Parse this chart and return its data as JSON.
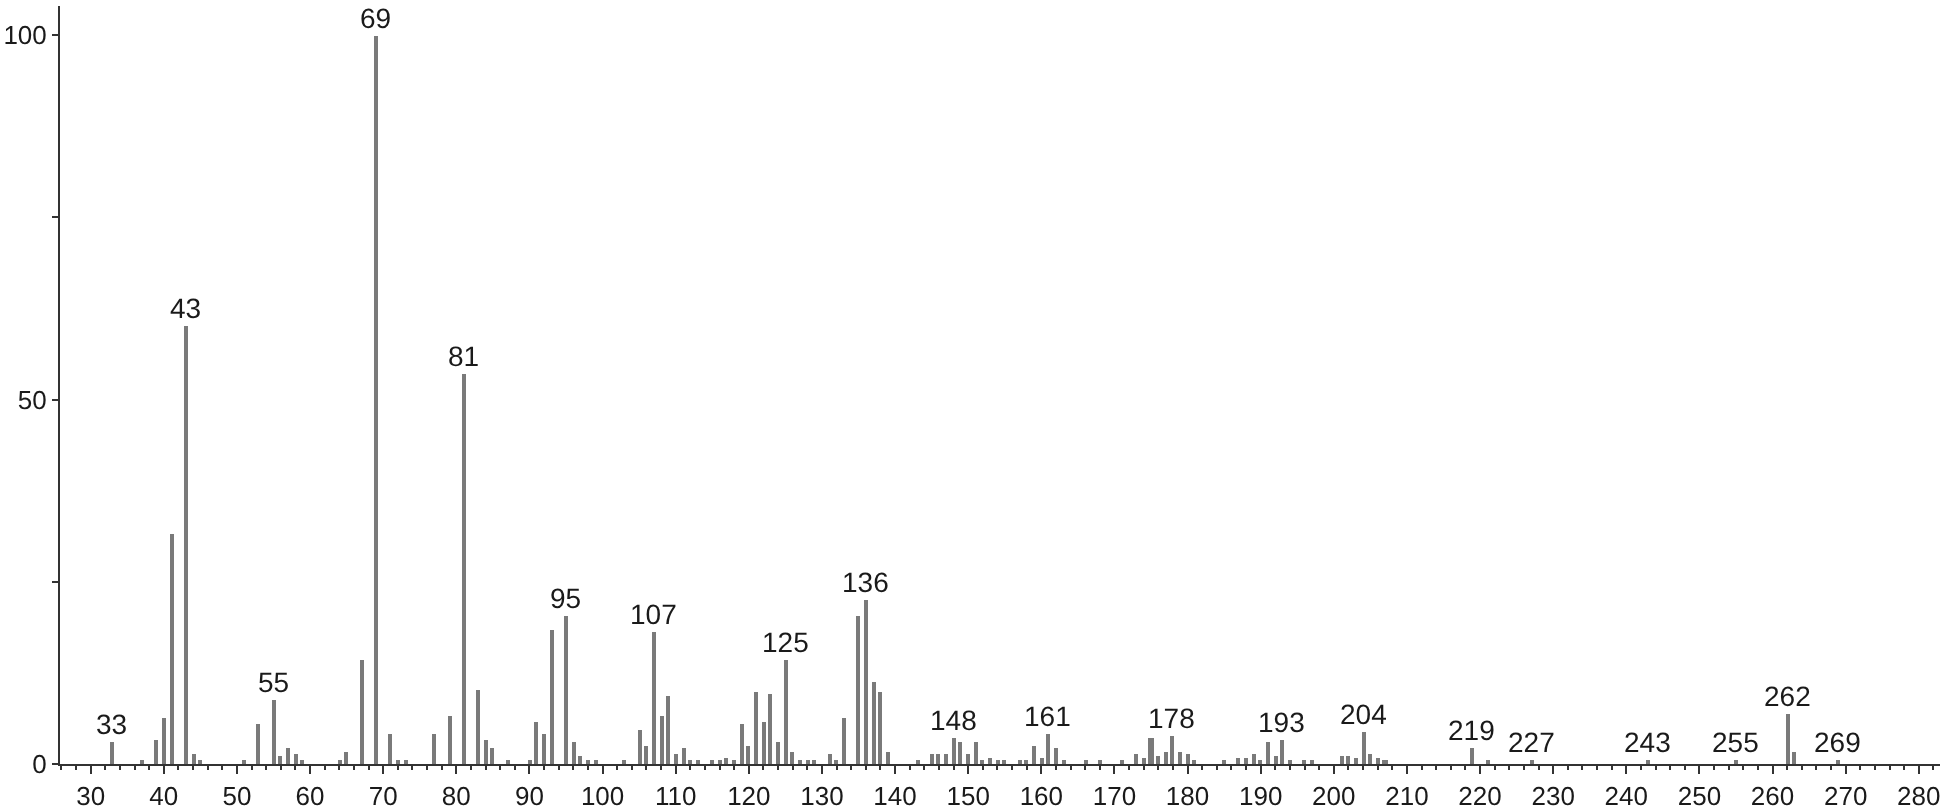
{
  "chart_data": {
    "type": "bar",
    "color": "#7a7a7a",
    "x": [
      33,
      37,
      39,
      40,
      41,
      43,
      44,
      45,
      51,
      53,
      55,
      56,
      57,
      58,
      59,
      64,
      65,
      67,
      69,
      71,
      72,
      73,
      77,
      79,
      81,
      83,
      84,
      85,
      87,
      90,
      91,
      92,
      93,
      95,
      96,
      97,
      98,
      99,
      103,
      105,
      106,
      107,
      108,
      109,
      110,
      111,
      112,
      113,
      115,
      116,
      117,
      118,
      119,
      120,
      121,
      122,
      123,
      124,
      125,
      126,
      127,
      128,
      129,
      131,
      132,
      133,
      135,
      136,
      137,
      138,
      139,
      143,
      145,
      146,
      147,
      148,
      149,
      150,
      151,
      152,
      153,
      154,
      155,
      157,
      158,
      159,
      160,
      161,
      162,
      163,
      166,
      168,
      171,
      173,
      174,
      175,
      176,
      177,
      178,
      179,
      180,
      181,
      185,
      187,
      188,
      189,
      190,
      191,
      192,
      193,
      194,
      196,
      197,
      201,
      202,
      203,
      204,
      205,
      206,
      207,
      219,
      221,
      227,
      243,
      255,
      262,
      263,
      269
    ],
    "values": [
      3.0,
      0.5,
      3.2,
      6.2,
      31.6,
      60,
      1.5,
      0.5,
      0.5,
      5.4,
      8.7,
      1.1,
      2.2,
      1.5,
      0.5,
      0.5,
      1.7,
      14.4,
      100,
      4.0,
      0.5,
      0.5,
      4.1,
      6.6,
      53.4,
      10.1,
      3.2,
      2.2,
      0.5,
      0.5,
      5.7,
      4.2,
      18.5,
      20.4,
      2.9,
      1.1,
      0.5,
      0.6,
      0.5,
      4.7,
      2.6,
      18.1,
      6.6,
      9.3,
      1.5,
      2.2,
      0.5,
      0.4,
      0.5,
      0.5,
      0.9,
      0.5,
      5.4,
      2.6,
      9.9,
      5.8,
      9.6,
      3.1,
      14.2,
      1.6,
      0.5,
      0.5,
      0.5,
      1.3,
      0.5,
      6.2,
      20.3,
      22.6,
      11.2,
      9.9,
      1.6,
      0.5,
      1.3,
      1.3,
      1.5,
      3.6,
      2.9,
      1.5,
      2.9,
      0.5,
      0.9,
      0.5,
      0.4,
      0.5,
      0.6,
      2.5,
      0.9,
      4.0,
      2.2,
      0.6,
      0.5,
      0.5,
      0.6,
      1.5,
      0.8,
      3.6,
      1.2,
      1.6,
      3.9,
      1.6,
      1.5,
      0.5,
      0.5,
      0.7,
      0.9,
      1.5,
      0.5,
      2.9,
      1.2,
      3.2,
      0.5,
      0.5,
      0.5,
      1.1,
      1.1,
      0.8,
      4.5,
      1.5,
      0.8,
      0.5,
      2.1,
      0.5,
      0.6,
      0.6,
      0.6,
      6.8,
      1.6,
      0.6
    ],
    "xlim": [
      25.8,
      282.9
    ],
    "xticks": [
      {
        "value": 26,
        "label": null
      },
      {
        "value": 28,
        "label": null
      },
      30,
      {
        "value": 32,
        "label": null
      },
      {
        "value": 34,
        "label": null
      },
      {
        "value": 36,
        "label": null
      },
      {
        "value": 38,
        "label": null
      },
      40,
      {
        "value": 42,
        "label": null
      },
      {
        "value": 44,
        "label": null
      },
      {
        "value": 46,
        "label": null
      },
      {
        "value": 48,
        "label": null
      },
      50,
      {
        "value": 52,
        "label": null
      },
      {
        "value": 54,
        "label": null
      },
      {
        "value": 56,
        "label": null
      },
      {
        "value": 58,
        "label": null
      },
      60,
      {
        "value": 62,
        "label": null
      },
      {
        "value": 64,
        "label": null
      },
      {
        "value": 66,
        "label": null
      },
      {
        "value": 68,
        "label": null
      },
      70,
      {
        "value": 72,
        "label": null
      },
      {
        "value": 74,
        "label": null
      },
      {
        "value": 76,
        "label": null
      },
      {
        "value": 78,
        "label": null
      },
      80,
      {
        "value": 82,
        "label": null
      },
      {
        "value": 84,
        "label": null
      },
      {
        "value": 86,
        "label": null
      },
      {
        "value": 88,
        "label": null
      },
      90,
      {
        "value": 92,
        "label": null
      },
      {
        "value": 94,
        "label": null
      },
      {
        "value": 96,
        "label": null
      },
      {
        "value": 98,
        "label": null
      },
      100,
      {
        "value": 102,
        "label": null
      },
      {
        "value": 104,
        "label": null
      },
      {
        "value": 106,
        "label": null
      },
      {
        "value": 108,
        "label": null
      },
      110,
      {
        "value": 112,
        "label": null
      },
      {
        "value": 114,
        "label": null
      },
      {
        "value": 116,
        "label": null
      },
      {
        "value": 118,
        "label": null
      },
      120,
      {
        "value": 122,
        "label": null
      },
      {
        "value": 124,
        "label": null
      },
      {
        "value": 126,
        "label": null
      },
      {
        "value": 128,
        "label": null
      },
      130,
      {
        "value": 132,
        "label": null
      },
      {
        "value": 134,
        "label": null
      },
      {
        "value": 136,
        "label": null
      },
      {
        "value": 138,
        "label": null
      },
      140,
      {
        "value": 142,
        "label": null
      },
      {
        "value": 144,
        "label": null
      },
      {
        "value": 146,
        "label": null
      },
      {
        "value": 148,
        "label": null
      },
      150,
      {
        "value": 152,
        "label": null
      },
      {
        "value": 154,
        "label": null
      },
      {
        "value": 156,
        "label": null
      },
      {
        "value": 158,
        "label": null
      },
      160,
      {
        "value": 162,
        "label": null
      },
      {
        "value": 164,
        "label": null
      },
      {
        "value": 166,
        "label": null
      },
      {
        "value": 168,
        "label": null
      },
      170,
      {
        "value": 172,
        "label": null
      },
      {
        "value": 174,
        "label": null
      },
      {
        "value": 176,
        "label": null
      },
      {
        "value": 178,
        "label": null
      },
      180,
      {
        "value": 182,
        "label": null
      },
      {
        "value": 184,
        "label": null
      },
      {
        "value": 186,
        "label": null
      },
      {
        "value": 188,
        "label": null
      },
      190,
      {
        "value": 192,
        "label": null
      },
      {
        "value": 194,
        "label": null
      },
      {
        "value": 196,
        "label": null
      },
      {
        "value": 198,
        "label": null
      },
      200,
      {
        "value": 202,
        "label": null
      },
      {
        "value": 204,
        "label": null
      },
      {
        "value": 206,
        "label": null
      },
      {
        "value": 208,
        "label": null
      },
      210,
      {
        "value": 212,
        "label": null
      },
      {
        "value": 214,
        "label": null
      },
      {
        "value": 216,
        "label": null
      },
      {
        "value": 218,
        "label": null
      },
      220,
      {
        "value": 222,
        "label": null
      },
      {
        "value": 224,
        "label": null
      },
      {
        "value": 226,
        "label": null
      },
      {
        "value": 228,
        "label": null
      },
      230,
      {
        "value": 232,
        "label": null
      },
      {
        "value": 234,
        "label": null
      },
      {
        "value": 236,
        "label": null
      },
      {
        "value": 238,
        "label": null
      },
      240,
      {
        "value": 242,
        "label": null
      },
      {
        "value": 244,
        "label": null
      },
      {
        "value": 246,
        "label": null
      },
      {
        "value": 248,
        "label": null
      },
      250,
      {
        "value": 252,
        "label": null
      },
      {
        "value": 254,
        "label": null
      },
      {
        "value": 256,
        "label": null
      },
      {
        "value": 258,
        "label": null
      },
      260,
      {
        "value": 262,
        "label": null
      },
      {
        "value": 264,
        "label": null
      },
      {
        "value": 266,
        "label": null
      },
      {
        "value": 268,
        "label": null
      },
      270,
      {
        "value": 272,
        "label": null
      },
      {
        "value": 274,
        "label": null
      },
      {
        "value": 276,
        "label": null
      },
      {
        "value": 278,
        "label": null
      },
      280,
      {
        "value": 282,
        "label": null
      }
    ],
    "ylim": [
      0,
      104
    ],
    "yticks": [
      0,
      {
        "value": 25,
        "label": null
      },
      50,
      {
        "value": 75,
        "label": null
      },
      100
    ],
    "annotations": [
      {
        "text": "33",
        "x": 33,
        "y": 3.0
      },
      {
        "text": "43",
        "x": 43,
        "y": 60
      },
      {
        "text": "55",
        "x": 55,
        "y": 8.7
      },
      {
        "text": "69",
        "x": 69,
        "y": 100
      },
      {
        "text": "81",
        "x": 81,
        "y": 53.4
      },
      {
        "text": "95",
        "x": 95,
        "y": 20.4
      },
      {
        "text": "107",
        "x": 107,
        "y": 18.1
      },
      {
        "text": "125",
        "x": 125,
        "y": 14.2
      },
      {
        "text": "136",
        "x": 136,
        "y": 22.6
      },
      {
        "text": "148",
        "x": 148,
        "y": 3.6
      },
      {
        "text": "161",
        "x": 161,
        "y": 4.0
      },
      {
        "text": "178",
        "x": 178,
        "y": 3.9
      },
      {
        "text": "193",
        "x": 193,
        "y": 3.2
      },
      {
        "text": "204",
        "x": 204,
        "y": 4.5
      },
      {
        "text": "219",
        "x": 219,
        "y": 2.1
      },
      {
        "text": "227",
        "x": 227,
        "y": 0.6
      },
      {
        "text": "243",
        "x": 243,
        "y": 0.6
      },
      {
        "text": "255",
        "x": 255,
        "y": 0.6
      },
      {
        "text": "262",
        "x": 262,
        "y": 6.8
      },
      {
        "text": "269",
        "x": 269,
        "y": 0.6
      }
    ]
  }
}
